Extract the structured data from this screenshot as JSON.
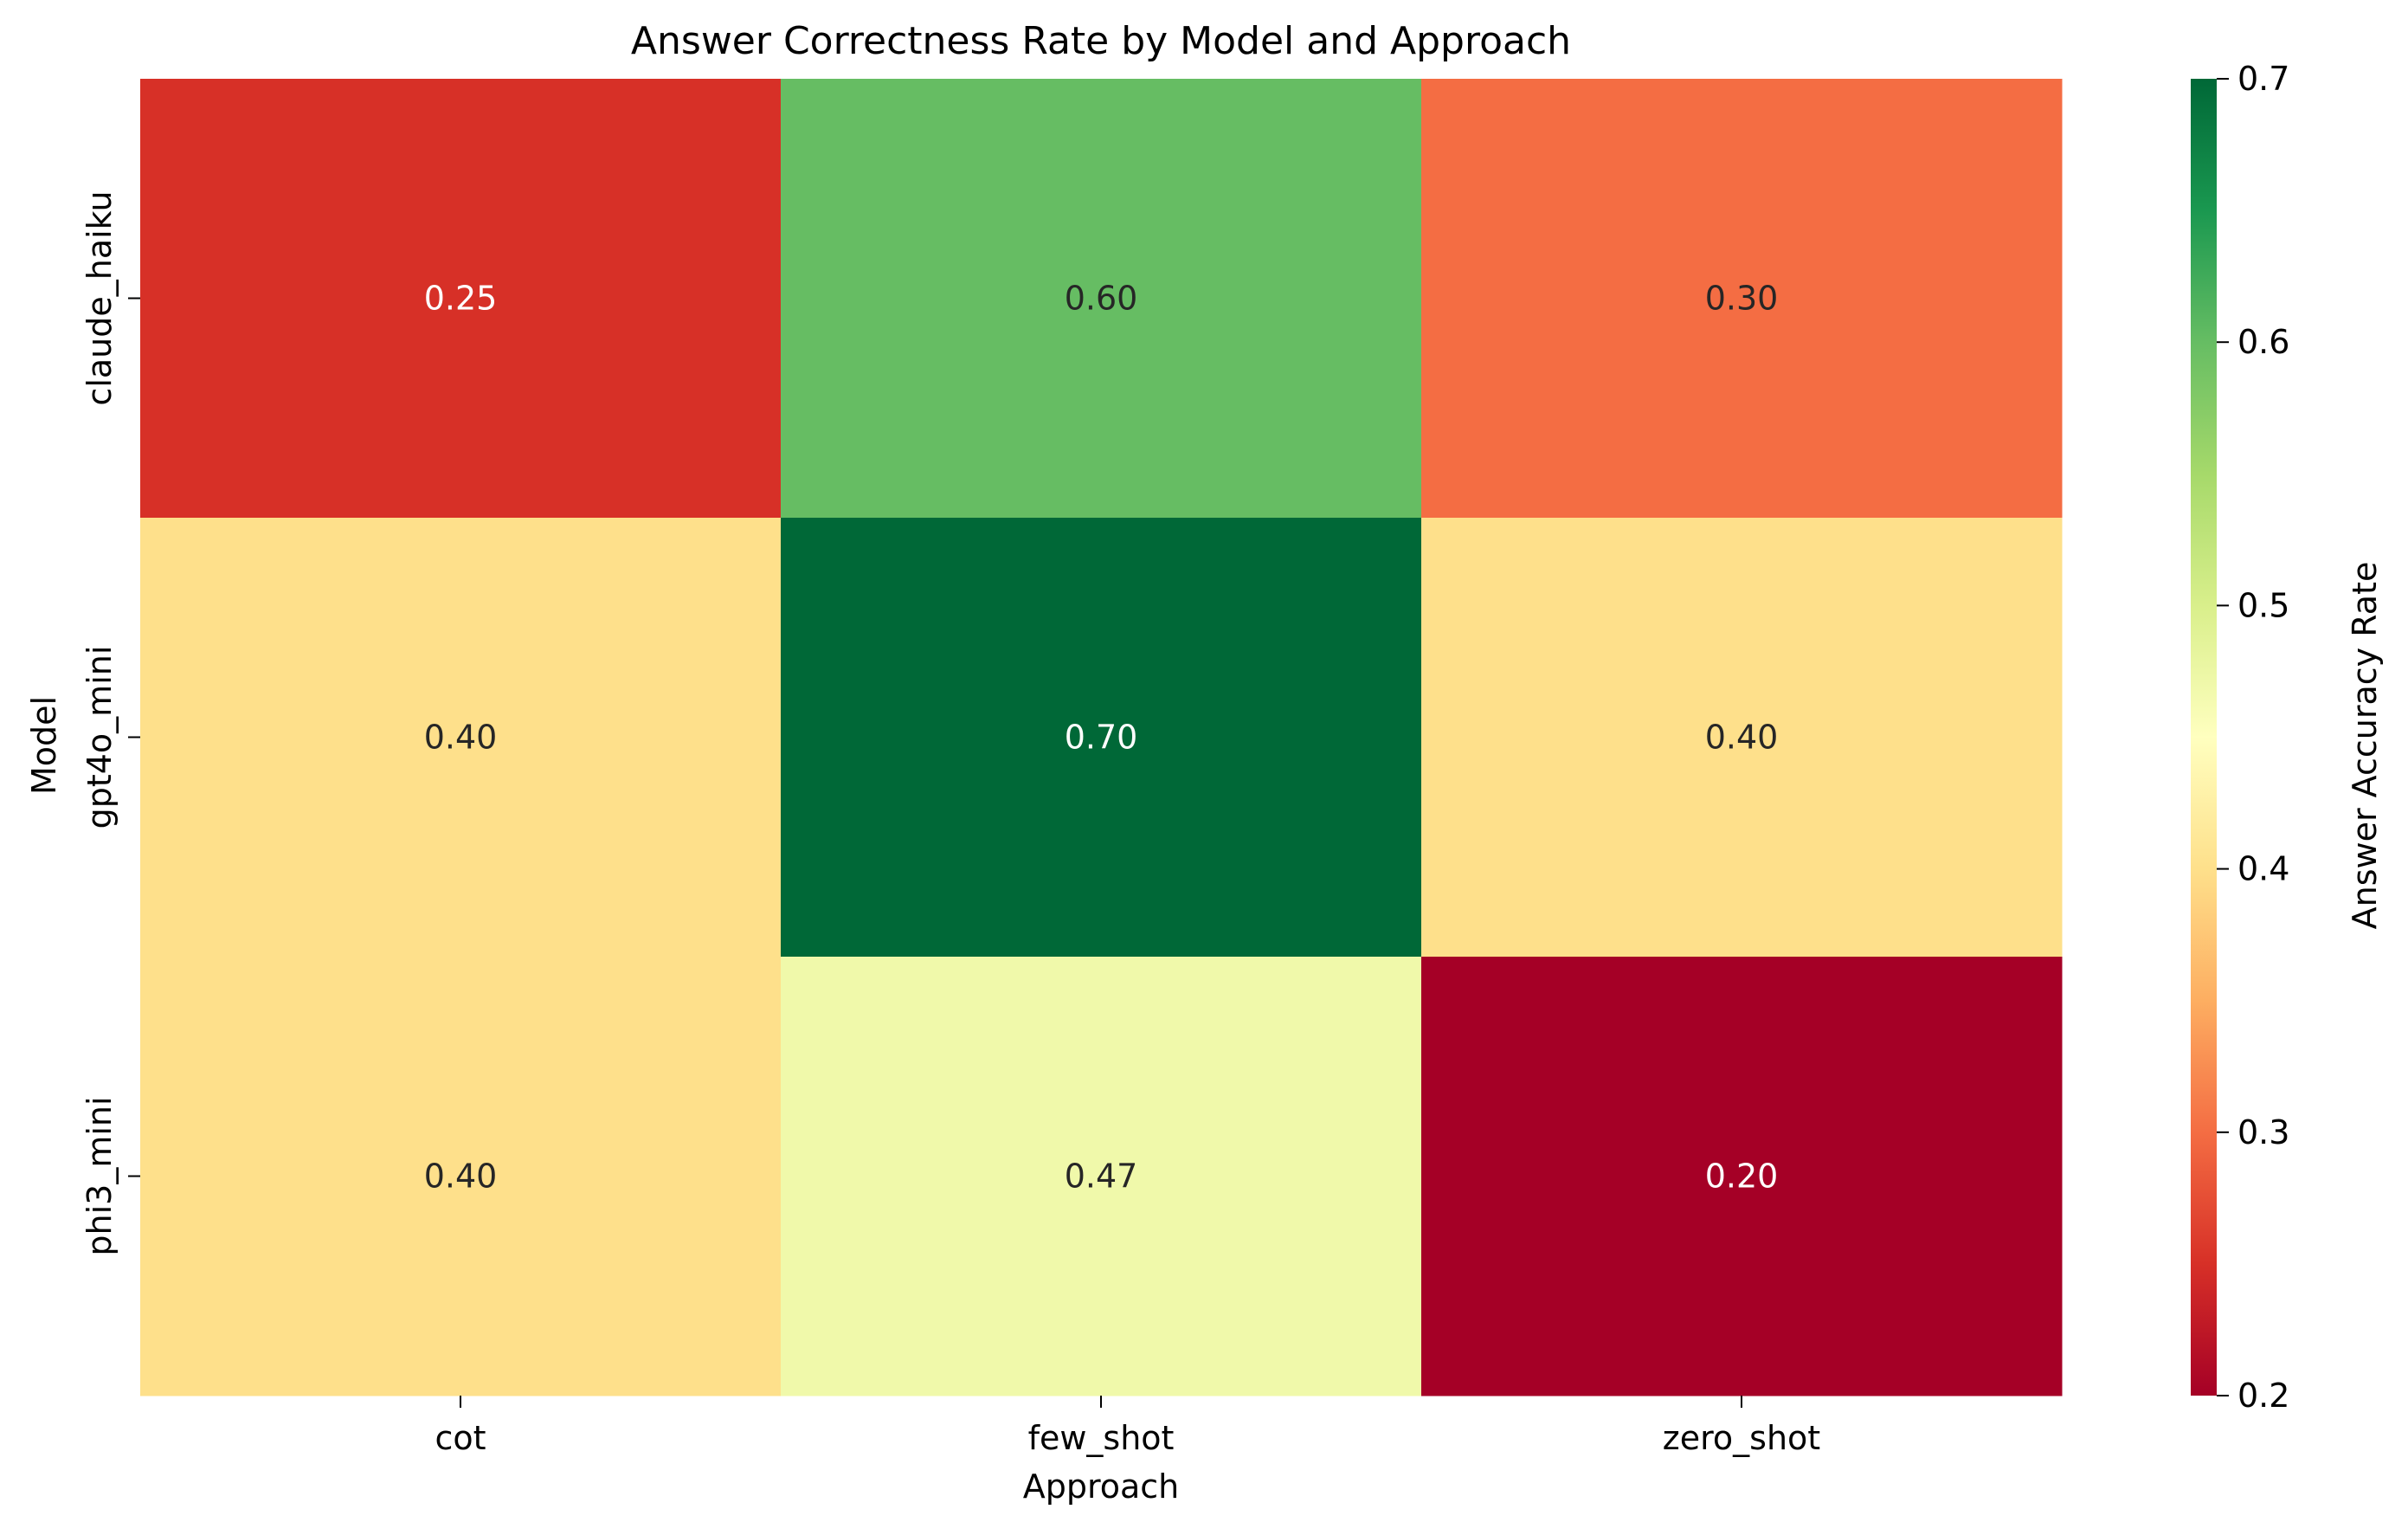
{
  "chart_data": {
    "type": "heatmap",
    "title": "Answer Correctness Rate by Model and Approach",
    "xlabel": "Approach",
    "ylabel": "Model",
    "x_categories": [
      "cot",
      "few_shot",
      "zero_shot"
    ],
    "y_categories": [
      "claude_haiku",
      "gpt4o_mini",
      "phi3_mini"
    ],
    "values": [
      [
        0.25,
        0.6,
        0.3
      ],
      [
        0.4,
        0.7,
        0.4
      ],
      [
        0.4,
        0.47,
        0.2
      ]
    ],
    "cell_labels": [
      [
        "0.25",
        "0.60",
        "0.30"
      ],
      [
        "0.40",
        "0.70",
        "0.40"
      ],
      [
        "0.40",
        "0.47",
        "0.20"
      ]
    ],
    "colormap": "RdYlGn",
    "value_range": [
      0.2,
      0.7
    ],
    "colorbar": {
      "label": "Answer Accuracy Rate",
      "ticks": [
        0.2,
        0.3,
        0.4,
        0.5,
        0.6,
        0.7
      ],
      "tick_labels": [
        "0.2",
        "0.3",
        "0.4",
        "0.5",
        "0.6",
        "0.7"
      ]
    },
    "colormap_stops": [
      "#a50026",
      "#d73027",
      "#f46d43",
      "#fdae61",
      "#fee08b",
      "#ffffbf",
      "#d9ef8b",
      "#a6d96a",
      "#66bd63",
      "#1a9850",
      "#006837"
    ]
  }
}
